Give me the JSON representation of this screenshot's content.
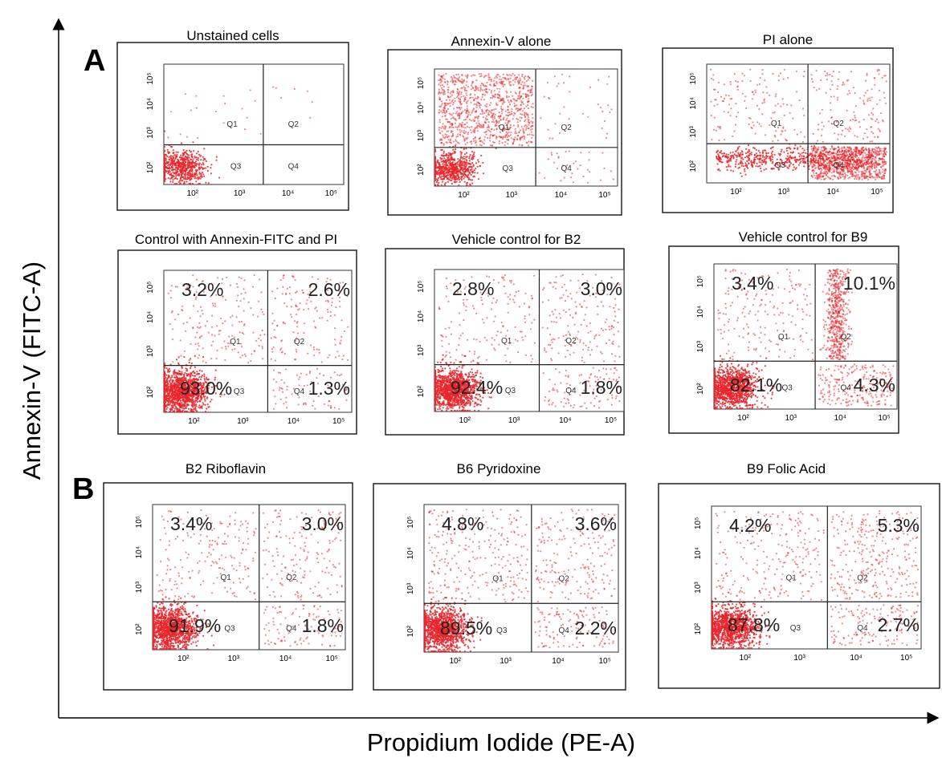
{
  "figure": {
    "ylabel": "Annexin-V (FITC-A)",
    "xlabel": "Propidium Iodide (PE-A)",
    "section_labels": [
      "A",
      "B"
    ]
  },
  "colors": {
    "dots": "#e8262b",
    "axis": "#000000",
    "frame": "#333333"
  },
  "chart_data": [
    {
      "type": "scatter",
      "title": "Unstained cells",
      "x_ticks": [
        "10²",
        "10³",
        "10⁴",
        "10⁵"
      ],
      "y_ticks": [
        "10²",
        "10³",
        "10⁴",
        "10⁵"
      ],
      "quadrant_labels": [
        "Q1",
        "Q2",
        "Q3",
        "Q4"
      ],
      "percentages": {
        "Q1": "",
        "Q2": "",
        "Q3": "",
        "Q4": ""
      },
      "populations": {
        "live": 0.92,
        "early_apoptotic": 0.03,
        "late_apoptotic": 0.01,
        "necrotic": 0.0
      },
      "density": "low"
    },
    {
      "type": "scatter",
      "title": "Annexin-V alone",
      "x_ticks": [
        "10²",
        "10³",
        "10⁴",
        "10⁵"
      ],
      "y_ticks": [
        "10²",
        "10³",
        "10⁴",
        "10⁵"
      ],
      "quadrant_labels": [
        "Q1",
        "Q2",
        "Q3",
        "Q4"
      ],
      "percentages": {
        "Q1": "",
        "Q2": "",
        "Q3": "",
        "Q4": ""
      },
      "populations": {
        "live": 0.7,
        "early_apoptotic": 0.28,
        "late_apoptotic": 0.01,
        "necrotic": 0.01
      },
      "density": "medium"
    },
    {
      "type": "scatter",
      "title": "PI alone",
      "x_ticks": [
        "10²",
        "10³",
        "10⁴",
        "10⁵"
      ],
      "y_ticks": [
        "10²",
        "10³",
        "10⁴",
        "10⁵"
      ],
      "quadrant_labels": [
        "Q1",
        "Q2",
        "Q3",
        "Q4"
      ],
      "percentages": {
        "Q1": "",
        "Q2": "",
        "Q3": "",
        "Q4": ""
      },
      "populations": {
        "live": 0.7,
        "early_apoptotic": 0.04,
        "late_apoptotic": 0.04,
        "necrotic": 0.22
      },
      "density": "medium"
    },
    {
      "type": "scatter",
      "title": "Control with Annexin-FITC and PI",
      "x_ticks": [
        "10²",
        "10³",
        "10⁴",
        "10⁵"
      ],
      "y_ticks": [
        "10²",
        "10³",
        "10⁴",
        "10⁵"
      ],
      "quadrant_labels": [
        "Q1",
        "Q2",
        "Q3",
        "Q4"
      ],
      "percentages": {
        "Q1": "3.2%",
        "Q2": "2.6%",
        "Q3": "93.0%",
        "Q4": "1.3%"
      },
      "populations": {
        "live": 0.93,
        "early_apoptotic": 0.032,
        "late_apoptotic": 0.026,
        "necrotic": 0.013
      },
      "density": "high"
    },
    {
      "type": "scatter",
      "title": "Vehicle control for B2",
      "x_ticks": [
        "10²",
        "10³",
        "10⁴",
        "10⁵"
      ],
      "y_ticks": [
        "10²",
        "10³",
        "10⁴",
        "10⁵"
      ],
      "quadrant_labels": [
        "Q1",
        "Q2",
        "Q3",
        "Q4"
      ],
      "percentages": {
        "Q1": "2.8%",
        "Q2": "3.0%",
        "Q3": "92.4%",
        "Q4": "1.8%"
      },
      "populations": {
        "live": 0.924,
        "early_apoptotic": 0.028,
        "late_apoptotic": 0.03,
        "necrotic": 0.018
      },
      "density": "high"
    },
    {
      "type": "scatter",
      "title": "Vehicle control for B9",
      "x_ticks": [
        "10²",
        "10³",
        "10⁴",
        "10⁵"
      ],
      "y_ticks": [
        "10²",
        "10³",
        "10⁴",
        "10⁵"
      ],
      "quadrant_labels": [
        "Q1",
        "Q2",
        "Q3",
        "Q4"
      ],
      "percentages": {
        "Q1": "3.4%",
        "Q2": "10.1%",
        "Q3": "82.1%",
        "Q4": "4.3%"
      },
      "populations": {
        "live": 0.821,
        "early_apoptotic": 0.034,
        "late_apoptotic": 0.101,
        "necrotic": 0.043
      },
      "density": "high"
    },
    {
      "type": "scatter",
      "title": "B2 Riboflavin",
      "x_ticks": [
        "10²",
        "10³",
        "10⁴",
        "10⁵"
      ],
      "y_ticks": [
        "10²",
        "10³",
        "10⁴",
        "10⁵"
      ],
      "quadrant_labels": [
        "Q1",
        "Q2",
        "Q3",
        "Q4"
      ],
      "percentages": {
        "Q1": "3.4%",
        "Q2": "3.0%",
        "Q3": "91.9%",
        "Q4": "1.8%"
      },
      "populations": {
        "live": 0.919,
        "early_apoptotic": 0.034,
        "late_apoptotic": 0.03,
        "necrotic": 0.018
      },
      "density": "high"
    },
    {
      "type": "scatter",
      "title": "B6 Pyridoxine",
      "x_ticks": [
        "10²",
        "10³",
        "10⁴",
        "10⁵"
      ],
      "y_ticks": [
        "10²",
        "10³",
        "10⁴",
        "10⁵"
      ],
      "quadrant_labels": [
        "Q1",
        "Q2",
        "Q3",
        "Q4"
      ],
      "percentages": {
        "Q1": "4.8%",
        "Q2": "3.6%",
        "Q3": "89.5%",
        "Q4": "2.2%"
      },
      "populations": {
        "live": 0.895,
        "early_apoptotic": 0.048,
        "late_apoptotic": 0.036,
        "necrotic": 0.022
      },
      "density": "high"
    },
    {
      "type": "scatter",
      "title": "B9 Folic Acid",
      "x_ticks": [
        "10²",
        "10³",
        "10⁴",
        "10⁵"
      ],
      "y_ticks": [
        "10²",
        "10³",
        "10⁴",
        "10⁵"
      ],
      "quadrant_labels": [
        "Q1",
        "Q2",
        "Q3",
        "Q4"
      ],
      "percentages": {
        "Q1": "4.2%",
        "Q2": "5.3%",
        "Q3": "87.8%",
        "Q4": "2.7%"
      },
      "populations": {
        "live": 0.878,
        "early_apoptotic": 0.042,
        "late_apoptotic": 0.053,
        "necrotic": 0.027
      },
      "density": "high"
    }
  ]
}
